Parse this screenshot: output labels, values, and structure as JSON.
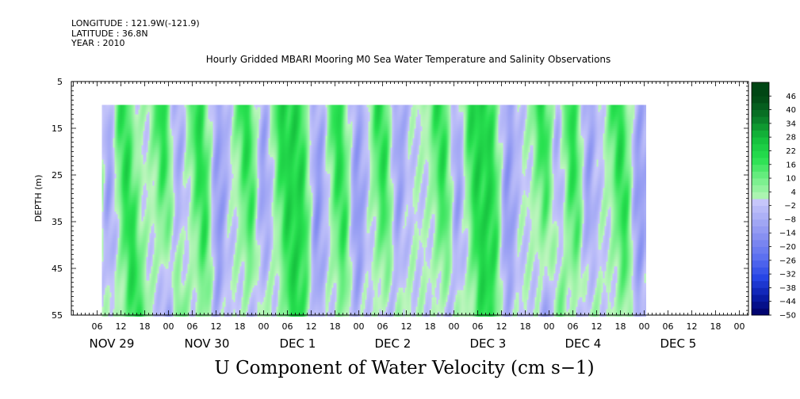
{
  "header": {
    "longitude": "LONGITUDE : 121.9W(-121.9)",
    "latitude": "LATITUDE : 36.8N",
    "year": "YEAR : 2010"
  },
  "chart_data": {
    "type": "heatmap",
    "title": "Hourly Gridded MBARI Mooring M0 Sea Water Temperature and Salinity Observations",
    "variable_label": "U Component of Water Velocity (cm s−1)",
    "ylabel": "DEPTH (m)",
    "y_ticks": [
      5,
      15,
      25,
      35,
      45,
      55
    ],
    "ylim": [
      55,
      5
    ],
    "y_reversed": true,
    "data_depth_range": [
      10,
      55
    ],
    "x_range_hours": [
      0,
      144
    ],
    "x_hour_ticks": [
      "06",
      "12",
      "18",
      "00",
      "06",
      "12",
      "18",
      "00",
      "06",
      "12",
      "18",
      "00",
      "06",
      "12",
      "18",
      "00",
      "06",
      "12",
      "18",
      "00",
      "06",
      "12",
      "18",
      "00",
      "06",
      "12",
      "18",
      "00"
    ],
    "day_labels": [
      "NOV 29",
      "NOV 30",
      "DEC  1",
      "DEC  2",
      "DEC  3",
      "DEC  4",
      "DEC  5"
    ],
    "colorbar": {
      "levels": [
        "46",
        "40",
        "34",
        "28",
        "22",
        "16",
        "10",
        "4",
        "−2",
        "−8",
        "−14",
        "−20",
        "−26",
        "−32",
        "−38",
        "−44",
        "−50"
      ],
      "min": -50,
      "max": 52,
      "step": 3
    },
    "pattern": {
      "description_free": true,
      "positive_centers_hours": [
        4,
        12,
        22,
        31,
        43,
        52,
        56,
        66,
        77,
        92,
        100,
        104,
        118,
        125,
        137
      ],
      "negative_centers_hours": [
        -1,
        9,
        26,
        37,
        48,
        62,
        72,
        82,
        97,
        110,
        122,
        130,
        143
      ]
    }
  }
}
